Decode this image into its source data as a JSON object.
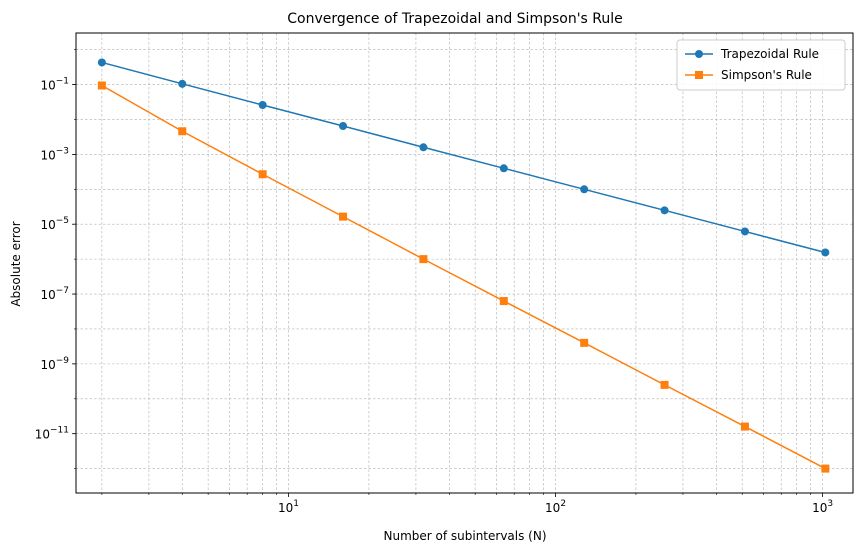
{
  "chart_data": {
    "type": "line",
    "title": "Convergence of Trapezoidal and Simpson's Rule",
    "xlabel": "Number of subintervals (N)",
    "ylabel": "Absolute error",
    "xscale": "log",
    "yscale": "log",
    "xlim": [
      1.6,
      1300
    ],
    "ylim": [
      2e-13,
      3.0
    ],
    "grid": true,
    "legend": "top-right",
    "x": [
      2,
      4,
      8,
      16,
      32,
      64,
      128,
      256,
      512,
      1024
    ],
    "x_ticks": [
      {
        "value": 10,
        "base": "10",
        "exp": "1"
      },
      {
        "value": 100,
        "base": "10",
        "exp": "2"
      },
      {
        "value": 1000,
        "base": "10",
        "exp": "3"
      }
    ],
    "y_ticks": [
      {
        "value": 0.1,
        "base": "10",
        "exp": "−1"
      },
      {
        "value": 0.001,
        "base": "10",
        "exp": "−3"
      },
      {
        "value": 1e-05,
        "base": "10",
        "exp": "−5"
      },
      {
        "value": 1e-07,
        "base": "10",
        "exp": "−7"
      },
      {
        "value": 1e-09,
        "base": "10",
        "exp": "−9"
      },
      {
        "value": 1e-11,
        "base": "10",
        "exp": "−11"
      }
    ],
    "series": [
      {
        "name": "Trapezoidal Rule",
        "color": "#1f77b4",
        "marker": "circle",
        "values": [
          0.43,
          0.105,
          0.026,
          0.0065,
          0.0016,
          0.0004,
          0.0001,
          2.5e-05,
          6.2e-06,
          1.55e-06
        ]
      },
      {
        "name": "Simpson's Rule",
        "color": "#ff7f0e",
        "marker": "square",
        "values": [
          0.094,
          0.0046,
          0.00027,
          1.65e-05,
          1e-06,
          6.3e-08,
          4e-09,
          2.5e-10,
          1.6e-11,
          1e-12
        ]
      }
    ]
  }
}
